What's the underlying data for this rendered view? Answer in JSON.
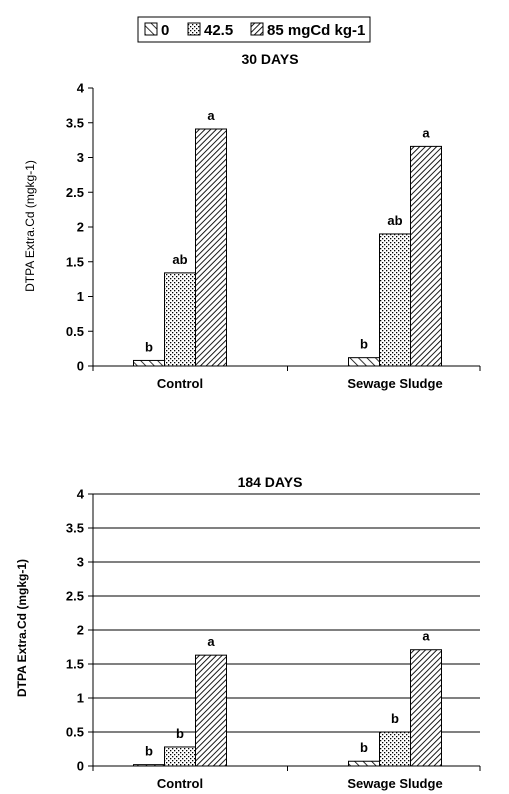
{
  "legend": {
    "entries": [
      {
        "label": "0",
        "pattern": "diag-light"
      },
      {
        "label": "42.5",
        "pattern": "dots"
      },
      {
        "label": "85 mgCd kg-1",
        "pattern": "diag-dense"
      }
    ]
  },
  "chart_data": [
    {
      "type": "bar",
      "title": "30 DAYS",
      "ylabel": "DTPA Extra.Cd (mgkg-1)",
      "xlabel": "",
      "ylim": [
        0,
        4
      ],
      "yticks": [
        "0",
        "0.5",
        "1",
        "1.5",
        "2",
        "2.5",
        "3",
        "3.5",
        "4"
      ],
      "grid": false,
      "categories": [
        "Control",
        "Sewage Sludge"
      ],
      "series": [
        {
          "name": "0",
          "values": [
            0.08,
            0.12
          ],
          "labels": [
            "b",
            "b"
          ]
        },
        {
          "name": "42.5",
          "values": [
            1.34,
            1.9
          ],
          "labels": [
            "ab",
            "ab"
          ]
        },
        {
          "name": "85 mgCd kg-1",
          "values": [
            3.41,
            3.16
          ],
          "labels": [
            "a",
            "a"
          ]
        }
      ]
    },
    {
      "type": "bar",
      "title": "184 DAYS",
      "ylabel": "DTPA Extra.Cd (mgkg-1)",
      "xlabel": "",
      "ylim": [
        0,
        4
      ],
      "yticks": [
        "0",
        "0.5",
        "1",
        "1.5",
        "2",
        "2.5",
        "3",
        "3.5",
        "4"
      ],
      "grid": true,
      "categories": [
        "Control",
        "Sewage Sludge"
      ],
      "series": [
        {
          "name": "0",
          "values": [
            0.02,
            0.07
          ],
          "labels": [
            "b",
            "b"
          ]
        },
        {
          "name": "42.5",
          "values": [
            0.28,
            0.5
          ],
          "labels": [
            "b",
            "b"
          ]
        },
        {
          "name": "85 mgCd kg-1",
          "values": [
            1.63,
            1.71
          ],
          "labels": [
            "a",
            "a"
          ]
        }
      ]
    }
  ]
}
